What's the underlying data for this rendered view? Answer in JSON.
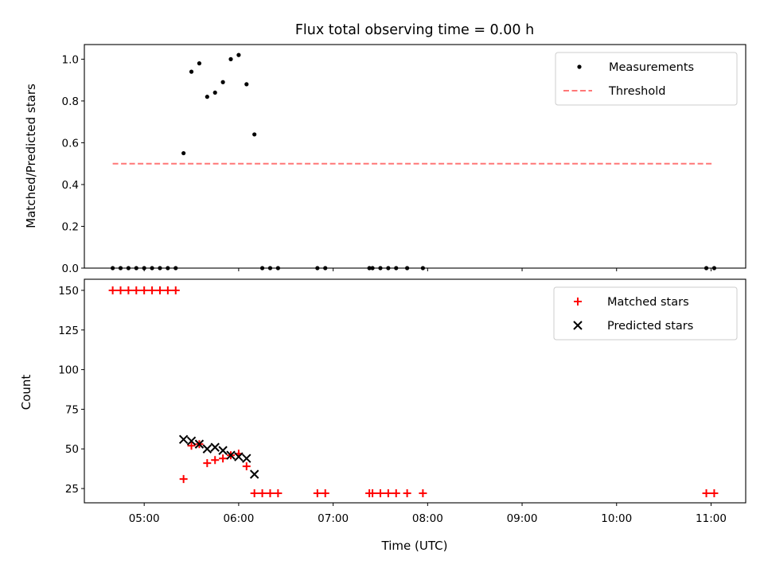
{
  "chart_data": [
    {
      "type": "scatter",
      "title": "Flux total observing time = 0.00 h",
      "xlabel": "",
      "ylabel": "Matched/Predicted stars",
      "xlim": [
        "04:22",
        "11:22"
      ],
      "ylim": [
        0,
        1.07
      ],
      "x_tick_labels": [],
      "y_ticks": [
        0.0,
        0.2,
        0.4,
        0.6,
        0.8,
        1.0
      ],
      "y_tick_labels": [
        "0.0",
        "0.2",
        "0.4",
        "0.6",
        "0.8",
        "1.0"
      ],
      "grid": false,
      "legend_position": "upper-right",
      "series": [
        {
          "name": "Measurements",
          "marker": "dot",
          "color": "#000000",
          "points": [
            [
              "04:40",
              0
            ],
            [
              "04:45",
              0
            ],
            [
              "04:50",
              0
            ],
            [
              "04:55",
              0
            ],
            [
              "05:00",
              0
            ],
            [
              "05:05",
              0
            ],
            [
              "05:10",
              0
            ],
            [
              "05:15",
              0
            ],
            [
              "05:20",
              0
            ],
            [
              "05:25",
              0.55
            ],
            [
              "05:30",
              0.94
            ],
            [
              "05:35",
              0.98
            ],
            [
              "05:40",
              0.82
            ],
            [
              "05:45",
              0.84
            ],
            [
              "05:50",
              0.89
            ],
            [
              "05:55",
              1.0
            ],
            [
              "06:00",
              1.02
            ],
            [
              "06:05",
              0.88
            ],
            [
              "06:10",
              0.64
            ],
            [
              "06:15",
              0
            ],
            [
              "06:20",
              0
            ],
            [
              "06:25",
              0
            ],
            [
              "06:50",
              0
            ],
            [
              "06:55",
              0
            ],
            [
              "07:23",
              0
            ],
            [
              "07:25",
              0
            ],
            [
              "07:30",
              0
            ],
            [
              "07:35",
              0
            ],
            [
              "07:40",
              0
            ],
            [
              "07:47",
              0
            ],
            [
              "07:57",
              0
            ],
            [
              "10:57",
              0
            ],
            [
              "11:02",
              0
            ]
          ]
        },
        {
          "name": "Threshold",
          "type": "line",
          "style": "dashed",
          "color": "#ff7777",
          "points": [
            [
              "04:40",
              0.5
            ],
            [
              "11:02",
              0.5
            ]
          ]
        }
      ]
    },
    {
      "type": "scatter",
      "title": "",
      "xlabel": "Time (UTC)",
      "ylabel": "Count",
      "xlim": [
        "04:22",
        "11:22"
      ],
      "ylim": [
        16,
        157
      ],
      "x_ticks": [
        "05:00",
        "06:00",
        "07:00",
        "08:00",
        "09:00",
        "10:00",
        "11:00"
      ],
      "x_tick_labels": [
        "05:00",
        "06:00",
        "07:00",
        "08:00",
        "09:00",
        "10:00",
        "11:00"
      ],
      "y_ticks": [
        25,
        50,
        75,
        100,
        125,
        150
      ],
      "y_tick_labels": [
        "25",
        "50",
        "75",
        "100",
        "125",
        "150"
      ],
      "grid": false,
      "legend_position": "upper-right",
      "series": [
        {
          "name": "Matched stars",
          "marker": "plus",
          "color": "#ff0000",
          "points": [
            [
              "04:40",
              150
            ],
            [
              "04:45",
              150
            ],
            [
              "04:50",
              150
            ],
            [
              "04:55",
              150
            ],
            [
              "05:00",
              150
            ],
            [
              "05:05",
              150
            ],
            [
              "05:10",
              150
            ],
            [
              "05:15",
              150
            ],
            [
              "05:20",
              150
            ],
            [
              "05:25",
              31
            ],
            [
              "05:30",
              52
            ],
            [
              "05:35",
              53
            ],
            [
              "05:40",
              41
            ],
            [
              "05:45",
              43
            ],
            [
              "05:50",
              44
            ],
            [
              "05:55",
              46
            ],
            [
              "06:00",
              47
            ],
            [
              "06:05",
              39
            ],
            [
              "06:10",
              22
            ],
            [
              "06:15",
              22
            ],
            [
              "06:20",
              22
            ],
            [
              "06:25",
              22
            ],
            [
              "06:50",
              22
            ],
            [
              "06:55",
              22
            ],
            [
              "07:23",
              22
            ],
            [
              "07:25",
              22
            ],
            [
              "07:30",
              22
            ],
            [
              "07:35",
              22
            ],
            [
              "07:40",
              22
            ],
            [
              "07:47",
              22
            ],
            [
              "07:57",
              22
            ],
            [
              "10:57",
              22
            ],
            [
              "11:02",
              22
            ]
          ]
        },
        {
          "name": "Predicted stars",
          "marker": "x",
          "color": "#000000",
          "points": [
            [
              "05:25",
              56
            ],
            [
              "05:30",
              55
            ],
            [
              "05:35",
              53
            ],
            [
              "05:40",
              50
            ],
            [
              "05:45",
              51
            ],
            [
              "05:50",
              49
            ],
            [
              "05:55",
              46
            ],
            [
              "06:00",
              45
            ],
            [
              "06:05",
              44
            ],
            [
              "06:10",
              34
            ]
          ]
        }
      ]
    }
  ]
}
